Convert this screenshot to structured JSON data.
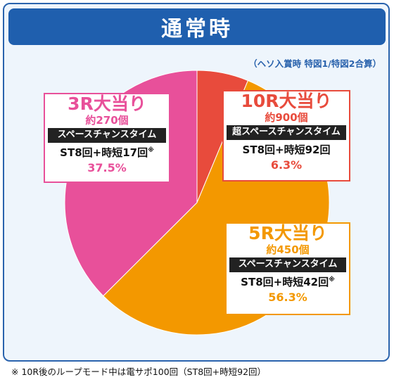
{
  "header": {
    "title": "通常時"
  },
  "note": "（ヘソ入賞時 特図1/特図2合算）",
  "footer": "※ 10R後のループモード中は電サポ100回（ST8回+時短92回）",
  "chart_data": {
    "type": "pie",
    "title": "通常時",
    "slices": [
      {
        "label": "10R大当り",
        "count": "約900個",
        "mode": "超スペースチャンスタイム",
        "st": "ST8回+時短92回",
        "mark": "",
        "value": 6.3,
        "percent": "6.3%",
        "color": "#e84b3c"
      },
      {
        "label": "5R大当り",
        "count": "約450個",
        "mode": "スペースチャンスタイム",
        "st": "ST8回+時短42回",
        "mark": "※",
        "value": 56.3,
        "percent": "56.3%",
        "color": "#f39800"
      },
      {
        "label": "3R大当り",
        "count": "約270個",
        "mode": "スペースチャンスタイム",
        "st": "ST8回+時短17回",
        "mark": "※",
        "value": 37.5,
        "percent": "37.5%",
        "color": "#e8509a"
      }
    ]
  }
}
